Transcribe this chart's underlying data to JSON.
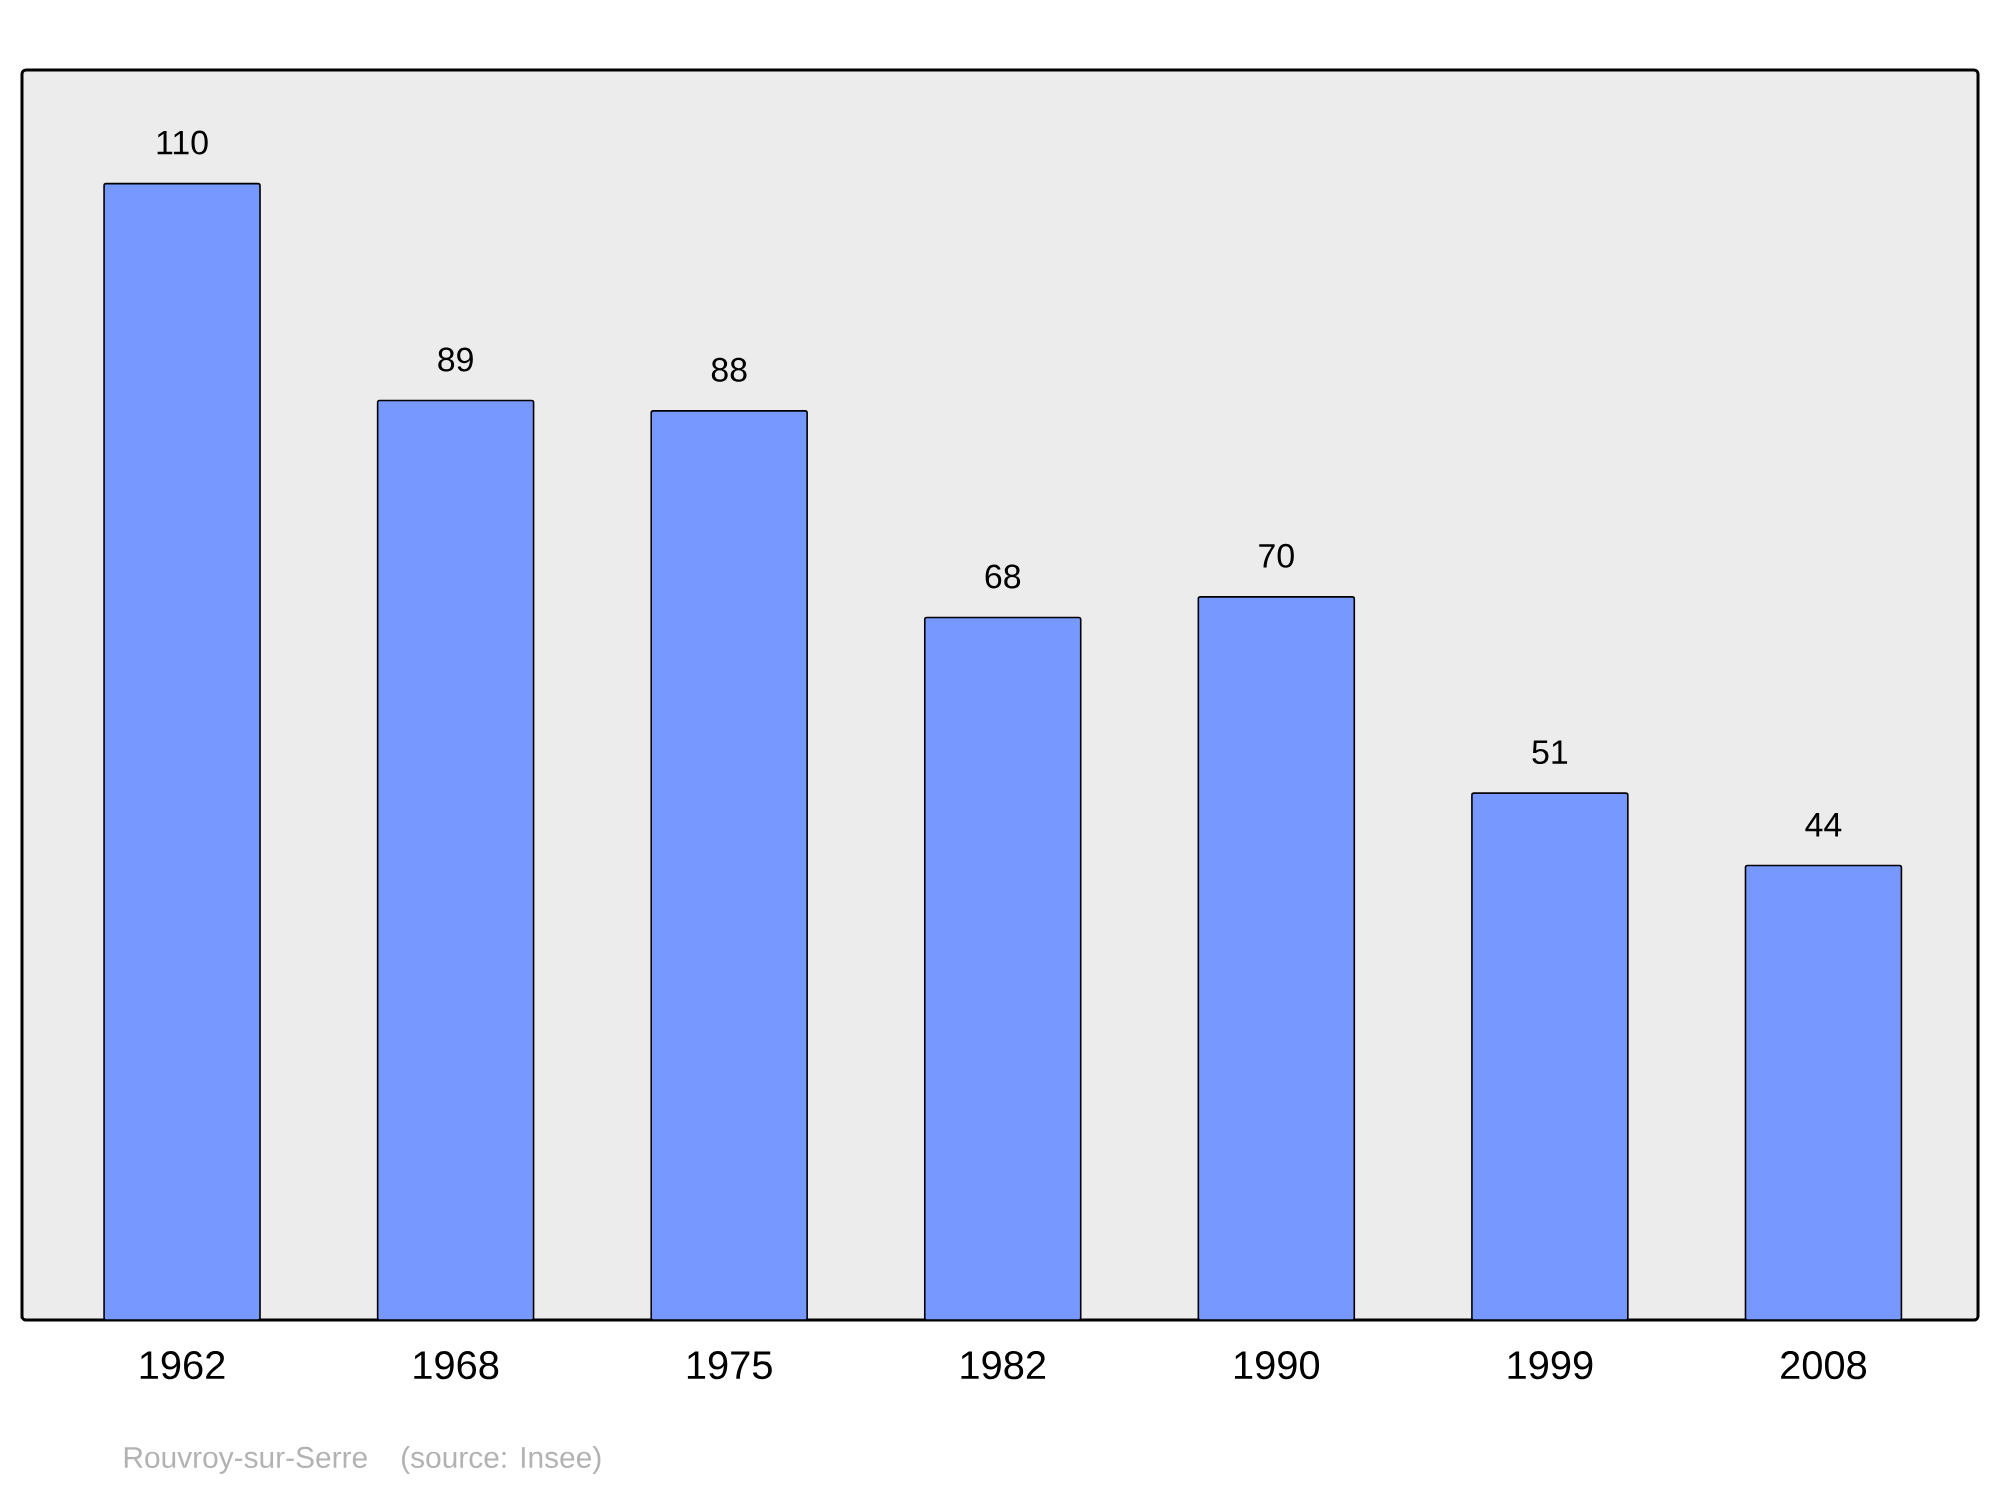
{
  "chart_data": {
    "type": "bar",
    "categories": [
      "1962",
      "1968",
      "1975",
      "1982",
      "1990",
      "1999",
      "2008"
    ],
    "values": [
      110,
      89,
      88,
      68,
      70,
      51,
      44
    ],
    "color": "#7799ff",
    "ylim": [
      0,
      121
    ],
    "data_labels": true,
    "annotations": [
      "Rouvroy-sur-Serre",
      "(source: Insee)"
    ]
  }
}
